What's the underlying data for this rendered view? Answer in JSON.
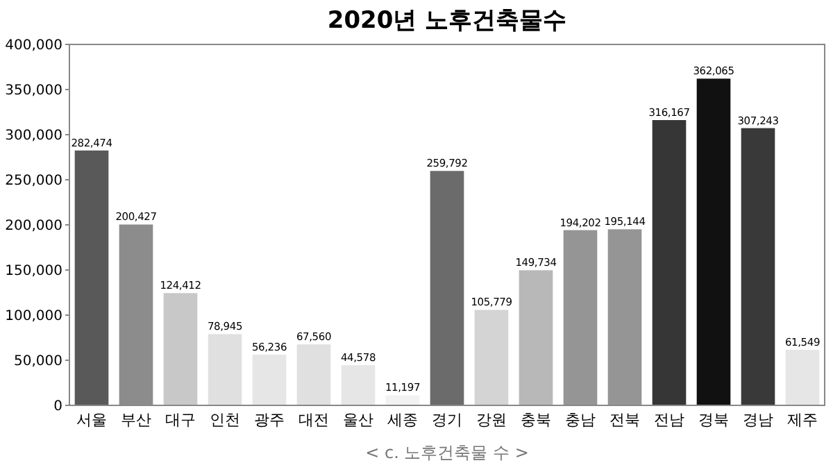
{
  "chart_data": {
    "type": "bar",
    "title": "2020년 노후건축물수",
    "categories": [
      "서울",
      "부산",
      "대구",
      "인천",
      "광주",
      "대전",
      "울산",
      "세종",
      "경기",
      "강원",
      "충북",
      "충남",
      "전북",
      "전남",
      "경북",
      "경남",
      "제주"
    ],
    "values": [
      282474,
      200427,
      124412,
      78945,
      56236,
      67560,
      44578,
      11197,
      259792,
      105779,
      149734,
      194202,
      195144,
      316167,
      362065,
      307243,
      61549
    ],
    "value_labels": [
      "282,474",
      "200,427",
      "124,412",
      "78,945",
      "56,236",
      "67,560",
      "44,578",
      "11,197",
      "259,792",
      "105,779",
      "149,734",
      "194,202",
      "195,144",
      "316,167",
      "362,065",
      "307,243",
      "61,549"
    ],
    "colors": [
      "#595959",
      "#8c8c8c",
      "#c8c8c8",
      "#e0e0e0",
      "#e6e6e6",
      "#e0e0e0",
      "#e6e6e6",
      "#f2f2f2",
      "#6b6b6b",
      "#d4d4d4",
      "#b8b8b8",
      "#959595",
      "#959595",
      "#363636",
      "#111111",
      "#393939",
      "#e6e6e6"
    ],
    "ylim": [
      0,
      400000
    ],
    "yticks": [
      {
        "value": 0,
        "label": "0"
      },
      {
        "value": 50000,
        "label": "50,000"
      },
      {
        "value": 100000,
        "label": "100,000"
      },
      {
        "value": 150000,
        "label": "150,000"
      },
      {
        "value": 200000,
        "label": "200,000"
      },
      {
        "value": 250000,
        "label": "250,000"
      },
      {
        "value": 300000,
        "label": "300,000"
      },
      {
        "value": 350000,
        "label": "350,000"
      },
      {
        "value": 400000,
        "label": "400,000"
      }
    ],
    "grid": false,
    "annotations": [
      "< c. 노후건축물 수 >"
    ]
  }
}
